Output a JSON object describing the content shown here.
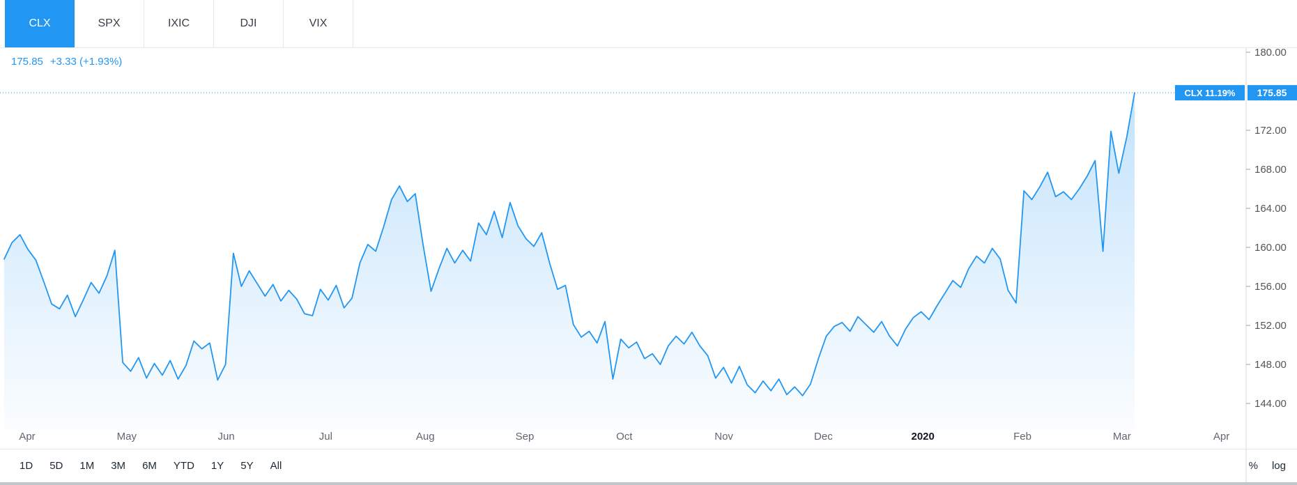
{
  "tabs": [
    {
      "label": "CLX",
      "active": true
    },
    {
      "label": "SPX",
      "active": false
    },
    {
      "label": "IXIC",
      "active": false
    },
    {
      "label": "DJI",
      "active": false
    },
    {
      "label": "VIX",
      "active": false
    }
  ],
  "legend": {
    "price": "175.85",
    "change": "+3.33 (+1.93%)"
  },
  "toolbar": {
    "ranges": [
      "1D",
      "5D",
      "1M",
      "3M",
      "6M",
      "YTD",
      "1Y",
      "5Y",
      "All"
    ],
    "percent_label": "%",
    "log_label": "log"
  },
  "colors": {
    "accent": "#2196f3",
    "line": "#2196f3",
    "axis_text": "#555555",
    "axis_line": "#d7dade",
    "month_text": "#60656e",
    "year_text": "#131722",
    "border": "#e0e3eb",
    "badge_text": "#ffffff"
  },
  "chart_data": {
    "type": "area",
    "title": "CLX stock price, Apr 2019 - Mar 2020",
    "series_name": "CLX",
    "legend_position": "top-left",
    "grid": false,
    "x_labels": [
      "Apr",
      "May",
      "Jun",
      "Jul",
      "Aug",
      "Sep",
      "Oct",
      "Nov",
      "Dec",
      "2020",
      "Feb",
      "Mar",
      "Apr"
    ],
    "y_ticks": [
      180,
      172,
      168,
      164,
      160,
      156,
      152,
      148,
      144
    ],
    "ylim": [
      144,
      180
    ],
    "current_price": 175.85,
    "price_badge": "175.85",
    "pct_badge": "CLX 11.19%",
    "change": "+3.33",
    "change_pct": "+1.93%",
    "values": [
      158.8,
      160.5,
      161.3,
      159.8,
      158.7,
      156.5,
      154.2,
      153.7,
      155.1,
      152.9,
      154.6,
      156.4,
      155.3,
      157.1,
      159.7,
      148.2,
      147.3,
      148.7,
      146.6,
      148.1,
      146.9,
      148.4,
      146.5,
      147.9,
      150.4,
      149.6,
      150.2,
      146.4,
      148.0,
      159.4,
      156.0,
      157.6,
      156.3,
      155.0,
      156.2,
      154.5,
      155.6,
      154.7,
      153.2,
      153.0,
      155.7,
      154.6,
      156.1,
      153.8,
      154.8,
      158.4,
      160.3,
      159.6,
      162.1,
      164.9,
      166.3,
      164.7,
      165.5,
      160.2,
      155.5,
      157.8,
      159.9,
      158.4,
      159.7,
      158.6,
      162.5,
      161.3,
      163.7,
      161.0,
      164.6,
      162.2,
      160.9,
      160.1,
      161.5,
      158.4,
      155.7,
      156.1,
      152.1,
      150.8,
      151.4,
      150.2,
      152.4,
      146.5,
      150.6,
      149.7,
      150.3,
      148.6,
      149.1,
      148.0,
      149.9,
      150.9,
      150.1,
      151.3,
      149.9,
      148.9,
      146.6,
      147.7,
      146.1,
      147.8,
      145.9,
      145.1,
      146.3,
      145.3,
      146.5,
      144.9,
      145.7,
      144.8,
      146.0,
      148.6,
      150.9,
      151.9,
      152.3,
      151.4,
      152.9,
      152.1,
      151.3,
      152.4,
      150.9,
      149.9,
      151.6,
      152.8,
      153.4,
      152.6,
      154.0,
      155.3,
      156.6,
      155.9,
      157.8,
      159.1,
      158.4,
      159.9,
      158.8,
      155.6,
      154.3,
      165.8,
      164.9,
      166.2,
      167.7,
      165.2,
      165.7,
      164.9,
      166.0,
      167.3,
      168.9,
      159.6,
      171.9,
      167.6,
      171.3,
      175.85
    ]
  }
}
